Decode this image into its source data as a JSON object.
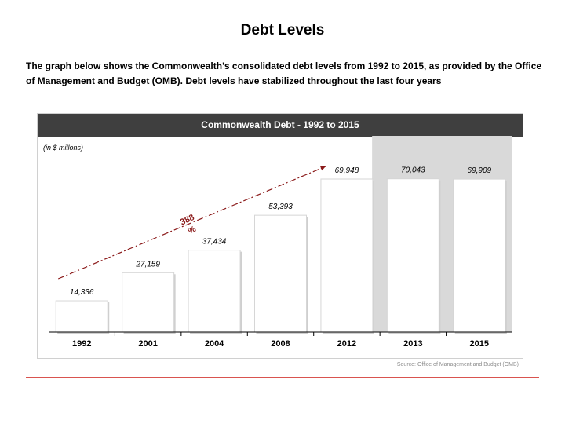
{
  "page": {
    "title": "Debt Levels",
    "intro": "The graph below shows the Commonwealth’s consolidated debt levels from 1992 to 2015, as provided by the Office of Management and Budget (OMB). Debt levels have stabilized throughout the last four years",
    "accent_color": "#d9534f",
    "source": "Source: Office of Management and Budget (OMB)"
  },
  "chart_data": {
    "type": "bar",
    "title": "Commonwealth Debt - 1992 to 2015",
    "unit_note": "(in $ millons)",
    "categories": [
      "1992",
      "2001",
      "2004",
      "2008",
      "2012",
      "2013",
      "2015"
    ],
    "values": [
      14336,
      27159,
      37434,
      53393,
      69948,
      70043,
      69909
    ],
    "value_labels": [
      "14,336",
      "27,159",
      "37,434",
      "53,393",
      "69,948",
      "70,043",
      "69,909"
    ],
    "highlighted_categories": [
      "2013",
      "2015"
    ],
    "growth_annotation": {
      "text_line1": "388",
      "text_line2": "%",
      "from": "1992",
      "to": "2012",
      "color": "#8b1a1a"
    },
    "grid": false,
    "legend": "none",
    "bar_color": "#ffffff",
    "highlight_color": "#d9d9d9",
    "header_color": "#3f3f3f"
  }
}
